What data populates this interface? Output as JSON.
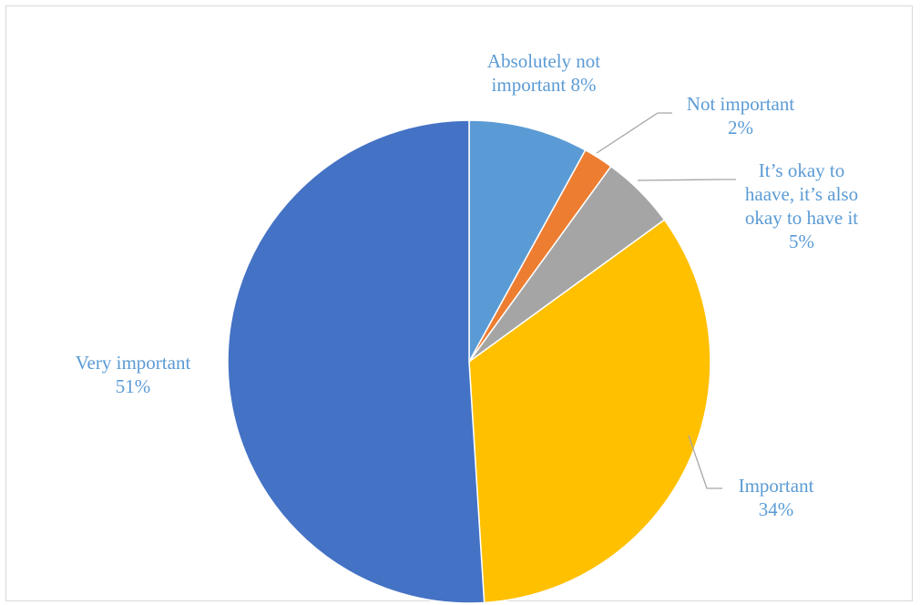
{
  "chart_data": {
    "type": "pie",
    "title": "",
    "legend": "none",
    "start_angle_deg": 0,
    "direction": "clockwise",
    "slices": [
      {
        "name": "Absolutely not important",
        "label_lines": [
          "Absolutely not",
          "important 8%"
        ],
        "value": 8,
        "color": "#5b9bd5",
        "label_color": "#5b9bd5"
      },
      {
        "name": "Not important",
        "label_lines": [
          "Not important",
          "2%"
        ],
        "value": 2,
        "color": "#ed7d31",
        "label_color": "#5b9bd5"
      },
      {
        "name": "It’s okay to haave, it’s also okay to have it",
        "label_lines": [
          "It’s okay to",
          "haave, it’s also",
          "okay to have it",
          "5%"
        ],
        "value": 5,
        "color": "#a5a5a5",
        "label_color": "#5b9bd5"
      },
      {
        "name": "Important",
        "label_lines": [
          "Important",
          "34%"
        ],
        "value": 34,
        "color": "#ffc000",
        "label_color": "#5b9bd5"
      },
      {
        "name": "Very important",
        "label_lines": [
          "Very important",
          "51%"
        ],
        "value": 51,
        "color": "#4472c4",
        "label_color": "#5b9bd5"
      }
    ],
    "leader_line_color": "#a6a6a6"
  }
}
